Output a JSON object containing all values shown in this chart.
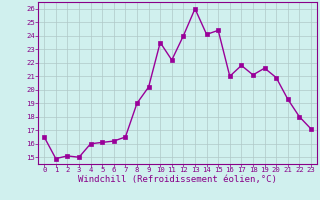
{
  "x": [
    0,
    1,
    2,
    3,
    4,
    5,
    6,
    7,
    8,
    9,
    10,
    11,
    12,
    13,
    14,
    15,
    16,
    17,
    18,
    19,
    20,
    21,
    22,
    23
  ],
  "y": [
    16.5,
    14.9,
    15.1,
    15.0,
    16.0,
    16.1,
    16.2,
    16.5,
    19.0,
    20.2,
    23.5,
    22.2,
    24.0,
    26.0,
    24.1,
    24.4,
    21.0,
    21.8,
    21.1,
    21.6,
    20.9,
    19.3,
    18.0,
    17.1
  ],
  "line_color": "#990099",
  "marker": "s",
  "markersize": 2.2,
  "linewidth": 1.0,
  "bg_color": "#d0f0ee",
  "grid_color": "#b0c8c8",
  "xlabel": "Windchill (Refroidissement éolien,°C)",
  "ylabel": "",
  "xlim": [
    -0.5,
    23.5
  ],
  "ylim": [
    14.5,
    26.5
  ],
  "yticks": [
    15,
    16,
    17,
    18,
    19,
    20,
    21,
    22,
    23,
    24,
    25,
    26
  ],
  "xticks": [
    0,
    1,
    2,
    3,
    4,
    5,
    6,
    7,
    8,
    9,
    10,
    11,
    12,
    13,
    14,
    15,
    16,
    17,
    18,
    19,
    20,
    21,
    22,
    23
  ],
  "tick_color": "#880088",
  "tick_fontsize": 5.2,
  "xlabel_fontsize": 6.5,
  "spine_color": "#880088"
}
